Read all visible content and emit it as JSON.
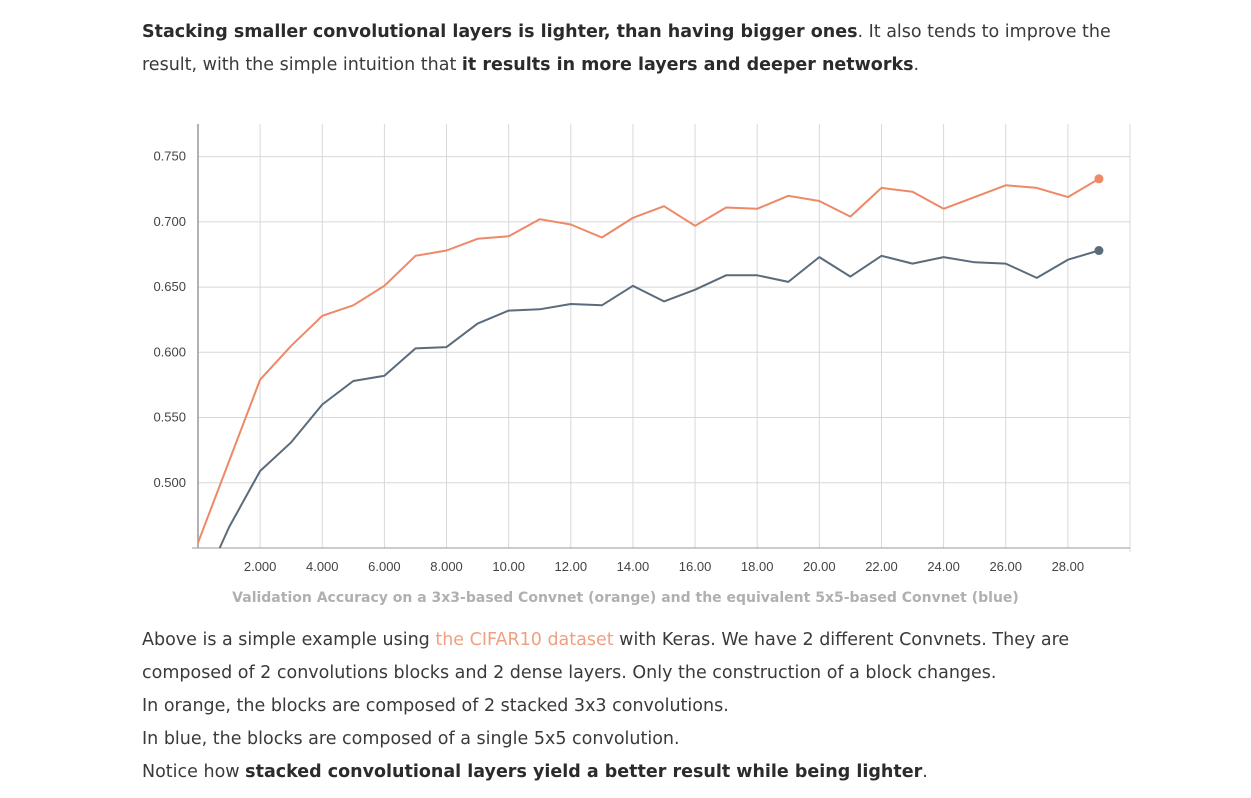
{
  "intro": {
    "bold1": "Stacking smaller convolutional layers is lighter, than having bigger ones",
    "text1": ". It also tends to improve the result, with the simple intuition that ",
    "bold2": "it results in more layers and deeper networks",
    "text2": "."
  },
  "caption": "Validation Accuracy on a 3x3-based Convnet (orange) and the equivalent 5x5-based Convnet (blue)",
  "outro": {
    "line1_before": "Above is a simple example using ",
    "link": "the CIFAR10 dataset",
    "line1_after": " with Keras. We have 2 different Convnets. They are composed of 2 convolutions blocks and 2 dense layers. Only the construction of a block changes.",
    "line2": "In orange, the blocks are composed of 2 stacked 3x3 convolutions.",
    "line3": "In blue, the blocks are composed of a single 5x5 convolution.",
    "line4_before": "Notice how ",
    "line4_bold": "stacked convolutional layers yield a better result while being lighter",
    "line4_after": "."
  },
  "colors": {
    "orange": "#ee8866",
    "blue": "#5a6b7b",
    "grid": "#d8d8d8",
    "axis": "#999999"
  },
  "chart_data": {
    "type": "line",
    "xlim": [
      0,
      30
    ],
    "ylim": [
      0.45,
      0.775
    ],
    "x_ticks": [
      2,
      4,
      6,
      8,
      10,
      12,
      14,
      16,
      18,
      20,
      22,
      24,
      26,
      28
    ],
    "x_tick_labels": [
      "2.000",
      "4.000",
      "6.000",
      "8.000",
      "10.00",
      "12.00",
      "14.00",
      "16.00",
      "18.00",
      "20.00",
      "22.00",
      "24.00",
      "26.00",
      "28.00"
    ],
    "y_ticks": [
      0.5,
      0.55,
      0.6,
      0.65,
      0.7,
      0.75
    ],
    "y_tick_labels": [
      "0.500",
      "0.550",
      "0.600",
      "0.650",
      "0.700",
      "0.750"
    ],
    "grid": true,
    "series": [
      {
        "color": "orange",
        "x": [
          0,
          2,
          3,
          4,
          5,
          6,
          7,
          8,
          9,
          10,
          11,
          12,
          13,
          14,
          15,
          16,
          17,
          18,
          19,
          20,
          21,
          22,
          23,
          24,
          25,
          26,
          27,
          28,
          29
        ],
        "y": [
          0.454,
          0.579,
          0.605,
          0.628,
          0.636,
          0.651,
          0.674,
          0.678,
          0.687,
          0.689,
          0.702,
          0.698,
          0.688,
          0.703,
          0.712,
          0.697,
          0.711,
          0.71,
          0.72,
          0.716,
          0.704,
          0.726,
          0.723,
          0.71,
          0.719,
          0.728,
          0.726,
          0.719,
          0.733
        ]
      },
      {
        "color": "blue",
        "x": [
          0.7,
          1,
          2,
          3,
          4,
          5,
          6,
          7,
          8,
          9,
          10,
          11,
          12,
          13,
          14,
          15,
          16,
          17,
          18,
          19,
          20,
          21,
          22,
          23,
          24,
          25,
          26,
          27,
          28,
          29
        ],
        "y": [
          0.45,
          0.466,
          0.509,
          0.531,
          0.56,
          0.578,
          0.582,
          0.603,
          0.604,
          0.622,
          0.632,
          0.633,
          0.637,
          0.636,
          0.651,
          0.639,
          0.648,
          0.659,
          0.659,
          0.654,
          0.673,
          0.658,
          0.674,
          0.668,
          0.673,
          0.669,
          0.668,
          0.657,
          0.671,
          0.678
        ]
      }
    ]
  }
}
